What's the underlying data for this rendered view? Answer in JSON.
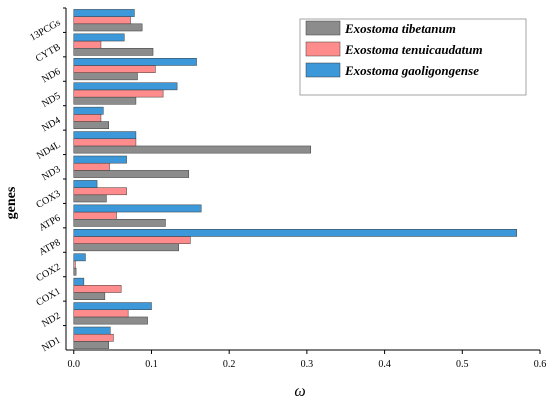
{
  "chart_data": {
    "type": "bar",
    "orientation": "horizontal",
    "ylabel": "genes",
    "xlabel": "ω",
    "xlim": [
      -0.01,
      0.6
    ],
    "xticks": [
      "0.0",
      "0.1",
      "0.2",
      "0.3",
      "0.4",
      "0.5",
      "0.6"
    ],
    "xtick_values": [
      0,
      0.1,
      0.2,
      0.3,
      0.4,
      0.5,
      0.6
    ],
    "categories": [
      "ND1",
      "ND2",
      "COX1",
      "COX2",
      "ATP8",
      "ATP6",
      "COX3",
      "ND3",
      "ND4L",
      "ND4",
      "ND5",
      "ND6",
      "CYTB",
      "13PCGs"
    ],
    "series": [
      {
        "name": "Exostoma tibetanum",
        "color": "#8c8c8c",
        "values": [
          0.045,
          0.095,
          0.04,
          0.003,
          0.135,
          0.118,
          0.042,
          0.148,
          0.305,
          0.045,
          0.08,
          0.082,
          0.102,
          0.088
        ]
      },
      {
        "name": "Exostoma tenuicaudatum",
        "color": "#ff8c8c",
        "values": [
          0.051,
          0.07,
          0.061,
          0.002,
          0.15,
          0.055,
          0.068,
          0.046,
          0.08,
          0.035,
          0.115,
          0.105,
          0.035,
          0.073
        ]
      },
      {
        "name": "Exostoma gaoligongense",
        "color": "#3c98d8",
        "values": [
          0.047,
          0.1,
          0.013,
          0.015,
          0.57,
          0.164,
          0.03,
          0.068,
          0.08,
          0.038,
          0.133,
          0.158,
          0.065,
          0.078
        ]
      }
    ],
    "legend_position": "top-right",
    "grid": false
  }
}
